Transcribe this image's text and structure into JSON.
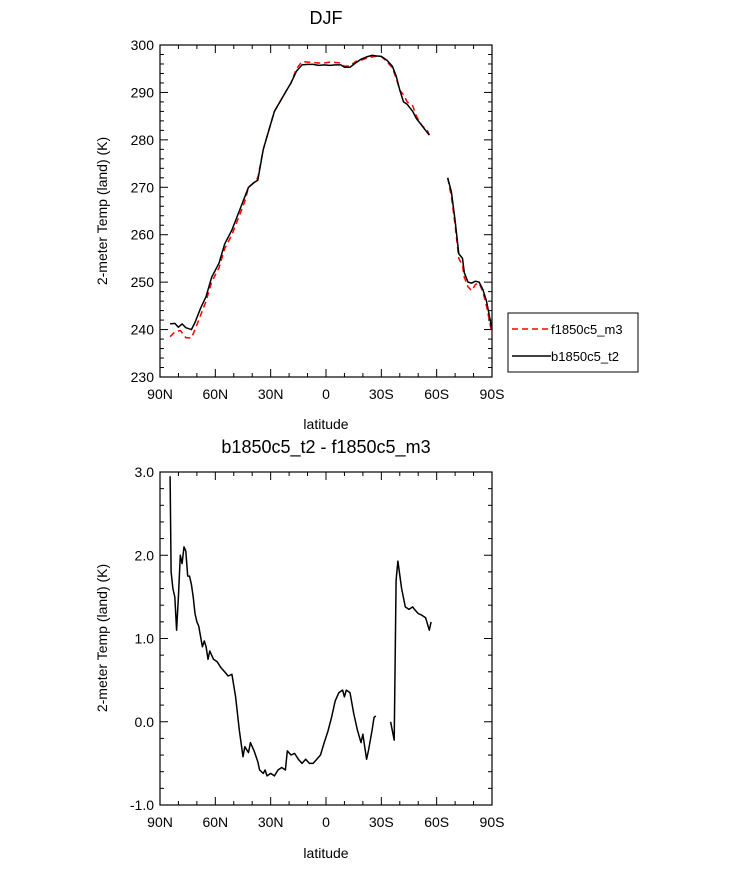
{
  "chart_data": [
    {
      "type": "line",
      "title": "DJF",
      "xlabel": "latitude",
      "ylabel": "2-meter Temp (land) (K)",
      "xlim": [
        90,
        -90
      ],
      "ylim": [
        230,
        300
      ],
      "xticks": [
        90,
        60,
        30,
        0,
        -30,
        -60,
        -90
      ],
      "xtick_labels": [
        "90N",
        "60N",
        "30N",
        "0",
        "30S",
        "60S",
        "90S"
      ],
      "yticks": [
        230,
        240,
        250,
        260,
        270,
        280,
        290,
        300
      ],
      "ytick_labels": [
        "230",
        "240",
        "250",
        "260",
        "270",
        "280",
        "290",
        "300"
      ],
      "legend_position": "right",
      "series": [
        {
          "name": "f1850c5_m3",
          "color": "#ff0000",
          "dash": "dashed",
          "segments": [
            [
              [
                84.5,
                238.5
              ],
              [
                82,
                239.5
              ],
              [
                79,
                239.8
              ],
              [
                76,
                238.3
              ],
              [
                73,
                238.2
              ],
              [
                71,
                240
              ],
              [
                68,
                243
              ],
              [
                65,
                246
              ],
              [
                62,
                250
              ],
              [
                58,
                253
              ],
              [
                55,
                257
              ],
              [
                51,
                260
              ],
              [
                47,
                264
              ],
              [
                44,
                267
              ],
              [
                42,
                270
              ],
              [
                39,
                271
              ],
              [
                37,
                272
              ],
              [
                34,
                278
              ],
              [
                31,
                282
              ],
              [
                28,
                286
              ],
              [
                25,
                288
              ],
              [
                22,
                290
              ],
              [
                19,
                292
              ],
              [
                16,
                295
              ],
              [
                13,
                296.5
              ],
              [
                10,
                296.4
              ],
              [
                7,
                296.3
              ],
              [
                4,
                296.2
              ],
              [
                1,
                296.2
              ],
              [
                -2,
                296.4
              ],
              [
                -5,
                296.3
              ],
              [
                -8,
                296.2
              ],
              [
                -10,
                295.5
              ],
              [
                -13,
                295.6
              ],
              [
                -16,
                296.5
              ],
              [
                -19,
                296.8
              ],
              [
                -22,
                297.2
              ],
              [
                -25,
                297.5
              ],
              [
                -27,
                297.6
              ],
              [
                -30,
                297.6
              ],
              [
                -33,
                296.5
              ],
              [
                -36,
                295.2
              ],
              [
                -38,
                293
              ],
              [
                -40,
                290.5
              ],
              [
                -42,
                289.5
              ],
              [
                -44,
                288
              ],
              [
                -47,
                287.2
              ],
              [
                -49,
                285
              ],
              [
                -52,
                283
              ],
              [
                -55,
                282
              ],
              [
                -56,
                281
              ]
            ],
            [
              [
                -66,
                272
              ],
              [
                -68,
                268
              ],
              [
                -70,
                262
              ],
              [
                -72,
                255
              ],
              [
                -74,
                253.5
              ],
              [
                -75,
                251
              ],
              [
                -77,
                249
              ],
              [
                -79,
                248.2
              ],
              [
                -81,
                249.5
              ],
              [
                -83,
                249.8
              ],
              [
                -85,
                248
              ],
              [
                -87,
                245
              ],
              [
                -89,
                241
              ],
              [
                -90,
                239
              ]
            ]
          ]
        },
        {
          "name": "b1850c5_t2",
          "color": "#000000",
          "dash": "solid",
          "segments": [
            [
              [
                84.5,
                241.2
              ],
              [
                82,
                241.3
              ],
              [
                80,
                240.5
              ],
              [
                78,
                241.2
              ],
              [
                76,
                240.4
              ],
              [
                73,
                240
              ],
              [
                71,
                241.5
              ],
              [
                68,
                244.5
              ],
              [
                65,
                247
              ],
              [
                62,
                251
              ],
              [
                58,
                254
              ],
              [
                55,
                258
              ],
              [
                51,
                261
              ],
              [
                47,
                265
              ],
              [
                44,
                268
              ],
              [
                42,
                270
              ],
              [
                39,
                271
              ],
              [
                37,
                271.5
              ],
              [
                34,
                278
              ],
              [
                31,
                282
              ],
              [
                28,
                286
              ],
              [
                25,
                288
              ],
              [
                22,
                290
              ],
              [
                19,
                292
              ],
              [
                16,
                294.5
              ],
              [
                13,
                295.8
              ],
              [
                10,
                295.9
              ],
              [
                7,
                295.9
              ],
              [
                4,
                295.7
              ],
              [
                1,
                295.8
              ],
              [
                -2,
                295.7
              ],
              [
                -5,
                295.8
              ],
              [
                -8,
                295.8
              ],
              [
                -10,
                295.3
              ],
              [
                -13,
                295.3
              ],
              [
                -16,
                296.2
              ],
              [
                -19,
                297
              ],
              [
                -22,
                297.5
              ],
              [
                -25,
                297.8
              ],
              [
                -27,
                297.7
              ],
              [
                -30,
                297.6
              ],
              [
                -33,
                296.8
              ],
              [
                -36,
                295.5
              ],
              [
                -38,
                293.5
              ],
              [
                -40,
                290.5
              ],
              [
                -42,
                288
              ],
              [
                -44,
                287.5
              ],
              [
                -47,
                286
              ],
              [
                -49,
                284.5
              ],
              [
                -52,
                283
              ],
              [
                -55,
                281.5
              ],
              [
                -56,
                281
              ]
            ],
            [
              [
                -66,
                272
              ],
              [
                -68,
                269
              ],
              [
                -70,
                263
              ],
              [
                -72,
                256
              ],
              [
                -74,
                255
              ],
              [
                -75,
                252
              ],
              [
                -77,
                250
              ],
              [
                -79,
                249.8
              ],
              [
                -81,
                250.2
              ],
              [
                -83,
                250
              ],
              [
                -85,
                248.5
              ],
              [
                -87,
                246
              ],
              [
                -89,
                242
              ],
              [
                -90,
                240
              ]
            ]
          ]
        }
      ]
    },
    {
      "type": "line",
      "title": "b1850c5_t2 - f1850c5_m3",
      "xlabel": "latitude",
      "ylabel": "2-meter Temp (land) (K)",
      "xlim": [
        90,
        -90
      ],
      "ylim": [
        -1.0,
        3.0
      ],
      "xticks": [
        90,
        60,
        30,
        0,
        -30,
        -60,
        -90
      ],
      "xtick_labels": [
        "90N",
        "60N",
        "30N",
        "0",
        "30S",
        "60S",
        "90S"
      ],
      "yticks": [
        -1.0,
        0.0,
        1.0,
        2.0,
        3.0
      ],
      "ytick_labels": [
        "-1.0",
        "0.0",
        "1.0",
        "2.0",
        "3.0"
      ],
      "series": [
        {
          "name": "",
          "color": "#000000",
          "dash": "solid",
          "segments": [
            [
              [
                84.5,
                2.95
              ],
              [
                84,
                1.8
              ],
              [
                83,
                1.6
              ],
              [
                82,
                1.5
              ],
              [
                81,
                1.1
              ],
              [
                80,
                1.5
              ],
              [
                79,
                2.0
              ],
              [
                78,
                1.9
              ],
              [
                77,
                2.1
              ],
              [
                76,
                2.05
              ],
              [
                75,
                1.75
              ],
              [
                74,
                1.75
              ],
              [
                73,
                1.65
              ],
              [
                72,
                1.5
              ],
              [
                71,
                1.3
              ],
              [
                70,
                1.2
              ],
              [
                69,
                1.15
              ],
              [
                67,
                0.9
              ],
              [
                66,
                0.97
              ],
              [
                65,
                0.9
              ],
              [
                64,
                0.75
              ],
              [
                63,
                0.85
              ],
              [
                61,
                0.75
              ],
              [
                59,
                0.72
              ],
              [
                57,
                0.65
              ],
              [
                55,
                0.6
              ],
              [
                53,
                0.55
              ],
              [
                51,
                0.57
              ],
              [
                49,
                0.3
              ],
              [
                47,
                -0.1
              ],
              [
                45,
                -0.42
              ],
              [
                44,
                -0.3
              ],
              [
                42,
                -0.37
              ],
              [
                41,
                -0.25
              ],
              [
                39,
                -0.35
              ],
              [
                37,
                -0.48
              ],
              [
                36,
                -0.58
              ],
              [
                34,
                -0.62
              ],
              [
                33,
                -0.58
              ],
              [
                32,
                -0.65
              ],
              [
                30,
                -0.62
              ],
              [
                28,
                -0.65
              ],
              [
                26,
                -0.58
              ],
              [
                24,
                -0.55
              ],
              [
                22,
                -0.58
              ],
              [
                21,
                -0.35
              ],
              [
                19,
                -0.4
              ],
              [
                17,
                -0.38
              ],
              [
                15,
                -0.45
              ],
              [
                13,
                -0.5
              ],
              [
                11,
                -0.45
              ],
              [
                9,
                -0.5
              ],
              [
                7,
                -0.5
              ],
              [
                5,
                -0.45
              ],
              [
                3,
                -0.4
              ],
              [
                1,
                -0.25
              ],
              [
                -1,
                -0.12
              ],
              [
                -3,
                0.05
              ],
              [
                -5,
                0.25
              ],
              [
                -7,
                0.35
              ],
              [
                -9,
                0.38
              ],
              [
                -10,
                0.3
              ],
              [
                -11,
                0.38
              ],
              [
                -13,
                0.35
              ],
              [
                -15,
                0.1
              ],
              [
                -17,
                -0.1
              ],
              [
                -19,
                -0.25
              ],
              [
                -20,
                -0.15
              ],
              [
                -21,
                -0.3
              ],
              [
                -22,
                -0.45
              ],
              [
                -23,
                -0.35
              ],
              [
                -25,
                -0.1
              ],
              [
                -26,
                0.05
              ],
              [
                -27,
                0.07
              ]
            ],
            [
              [
                -35,
                0.0
              ],
              [
                -37,
                -0.22
              ],
              [
                -38,
                1.7
              ],
              [
                -39,
                1.93
              ],
              [
                -41,
                1.6
              ],
              [
                -43,
                1.38
              ],
              [
                -45,
                1.35
              ],
              [
                -47,
                1.38
              ],
              [
                -48,
                1.35
              ],
              [
                -50,
                1.3
              ],
              [
                -52,
                1.28
              ],
              [
                -54,
                1.25
              ],
              [
                -56,
                1.1
              ],
              [
                -57,
                1.2
              ]
            ]
          ]
        }
      ]
    }
  ]
}
